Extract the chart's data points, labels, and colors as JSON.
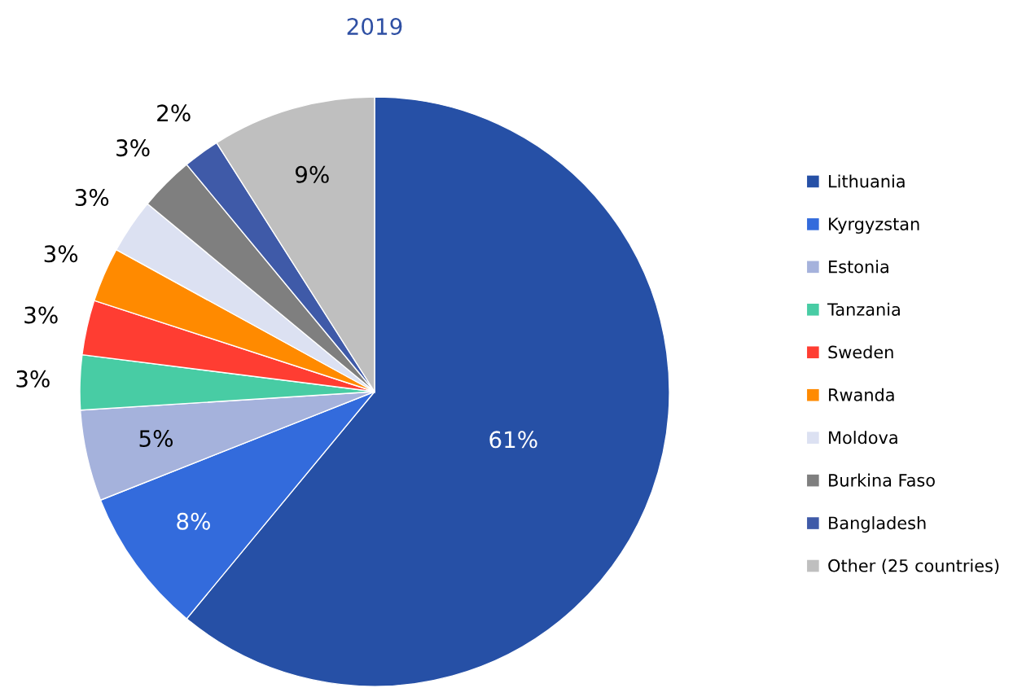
{
  "chart_data": {
    "type": "pie",
    "title": "2019",
    "categories": [
      "Lithuania",
      "Kyrgyzstan",
      "Estonia",
      "Tanzania",
      "Sweden",
      "Rwanda",
      "Moldova",
      "Burkina Faso",
      "Bangladesh",
      "Other (25 countries)"
    ],
    "values": [
      61,
      8,
      5,
      3,
      3,
      3,
      3,
      3,
      2,
      9
    ],
    "value_labels": [
      "61%",
      "8%",
      "5%",
      "3%",
      "3%",
      "3%",
      "3%",
      "3%",
      "2%",
      "9%"
    ],
    "colors": [
      "#2650a6",
      "#336bdc",
      "#a5b2dc",
      "#48cca4",
      "#ff3d32",
      "#ff8a00",
      "#dce1f2",
      "#7f7f7f",
      "#3f5aa8",
      "#bfbfbf"
    ],
    "legend": "right"
  }
}
